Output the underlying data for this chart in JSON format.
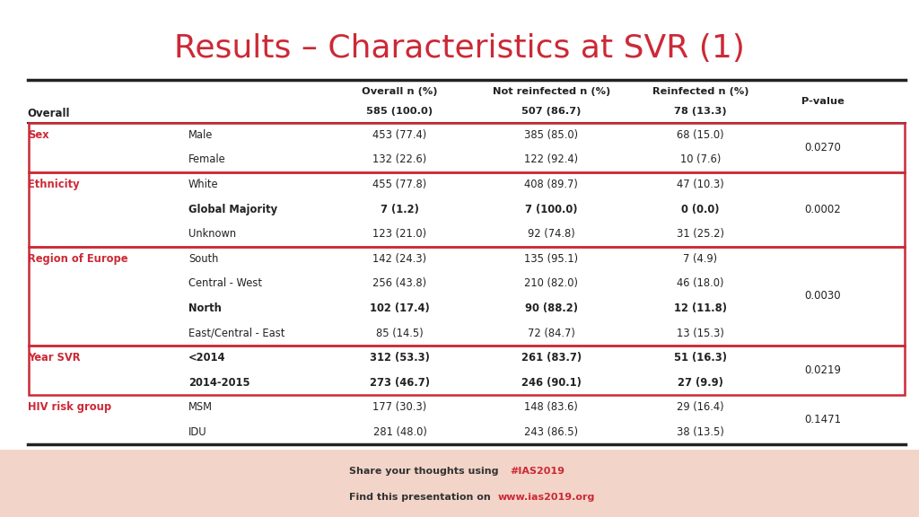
{
  "title": "Results – Characteristics at SVR (1)",
  "title_color": "#cc2936",
  "title_fontsize": 26,
  "background_color": "#ffffff",
  "footer_color": "#f2d5c8",
  "col_header_line1": [
    "",
    "",
    "Overall n (%)",
    "Not reinfected n (%)",
    "Reinfected n (%)",
    "P-value"
  ],
  "col_header_line2": [
    "",
    "",
    "585 (100.0)",
    "507 (86.7)",
    "78 (13.3)",
    ""
  ],
  "overall_label": "Overall",
  "rows": [
    {
      "group": "Sex",
      "subgroup": "Male",
      "overall": "453 (77.4)",
      "not_reinfected": "385 (85.0)",
      "reinfected": "68 (15.0)",
      "pvalue": "0.0270",
      "bold": false,
      "red_box_start": true,
      "red_box_end": false,
      "red_box": true
    },
    {
      "group": "",
      "subgroup": "Female",
      "overall": "132 (22.6)",
      "not_reinfected": "122 (92.4)",
      "reinfected": "10 (7.6)",
      "pvalue": "",
      "bold": false,
      "red_box_start": false,
      "red_box_end": true,
      "red_box": true
    },
    {
      "group": "Ethnicity",
      "subgroup": "White",
      "overall": "455 (77.8)",
      "not_reinfected": "408 (89.7)",
      "reinfected": "47 (10.3)",
      "pvalue": "0.0002",
      "bold": false,
      "red_box_start": true,
      "red_box_end": false,
      "red_box": true
    },
    {
      "group": "",
      "subgroup": "Global Majority",
      "overall": "7 (1.2)",
      "not_reinfected": "7 (100.0)",
      "reinfected": "0 (0.0)",
      "pvalue": "",
      "bold": true,
      "red_box_start": false,
      "red_box_end": false,
      "red_box": true
    },
    {
      "group": "",
      "subgroup": "Unknown",
      "overall": "123 (21.0)",
      "not_reinfected": "92 (74.8)",
      "reinfected": "31 (25.2)",
      "pvalue": "",
      "bold": false,
      "red_box_start": false,
      "red_box_end": true,
      "red_box": true
    },
    {
      "group": "Region of Europe",
      "subgroup": "South",
      "overall": "142 (24.3)",
      "not_reinfected": "135 (95.1)",
      "reinfected": "7 (4.9)",
      "pvalue": "0.0030",
      "bold": false,
      "red_box_start": true,
      "red_box_end": false,
      "red_box": true
    },
    {
      "group": "",
      "subgroup": "Central - West",
      "overall": "256 (43.8)",
      "not_reinfected": "210 (82.0)",
      "reinfected": "46 (18.0)",
      "pvalue": "",
      "bold": false,
      "red_box_start": false,
      "red_box_end": false,
      "red_box": true
    },
    {
      "group": "",
      "subgroup": "North",
      "overall": "102 (17.4)",
      "not_reinfected": "90 (88.2)",
      "reinfected": "12 (11.8)",
      "pvalue": "",
      "bold": true,
      "red_box_start": false,
      "red_box_end": false,
      "red_box": true
    },
    {
      "group": "",
      "subgroup": "East/Central - East",
      "overall": "85 (14.5)",
      "not_reinfected": "72 (84.7)",
      "reinfected": "13 (15.3)",
      "pvalue": "",
      "bold": false,
      "red_box_start": false,
      "red_box_end": true,
      "red_box": true
    },
    {
      "group": "Year SVR",
      "subgroup": "<2014",
      "overall": "312 (53.3)",
      "not_reinfected": "261 (83.7)",
      "reinfected": "51 (16.3)",
      "pvalue": "0.0219",
      "bold": true,
      "red_box_start": true,
      "red_box_end": false,
      "red_box": true
    },
    {
      "group": "",
      "subgroup": "2014-2015",
      "overall": "273 (46.7)",
      "not_reinfected": "246 (90.1)",
      "reinfected": "27 (9.9)",
      "pvalue": "",
      "bold": true,
      "red_box_start": false,
      "red_box_end": true,
      "red_box": true
    },
    {
      "group": "HIV risk group",
      "subgroup": "MSM",
      "overall": "177 (30.3)",
      "not_reinfected": "148 (83.6)",
      "reinfected": "29 (16.4)",
      "pvalue": "0.1471",
      "bold": false,
      "red_box_start": false,
      "red_box_end": false,
      "red_box": false
    },
    {
      "group": "",
      "subgroup": "IDU",
      "overall": "281 (48.0)",
      "not_reinfected": "243 (86.5)",
      "reinfected": "38 (13.5)",
      "pvalue": "",
      "bold": false,
      "red_box_start": false,
      "red_box_end": false,
      "red_box": false
    }
  ],
  "red_box_color": "#cc2936",
  "header_line_color": "#222222",
  "text_color": "#222222",
  "group_color": "#cc2936",
  "footer_text1_normal": "Share your thoughts using ",
  "footer_text1_bold_color": "#cc2936",
  "footer_hashtag": "#IAS2019",
  "footer_text2_normal": "Find this presentation on ",
  "footer_url": "www.ias2019.org",
  "footer_url_color": "#cc2936"
}
